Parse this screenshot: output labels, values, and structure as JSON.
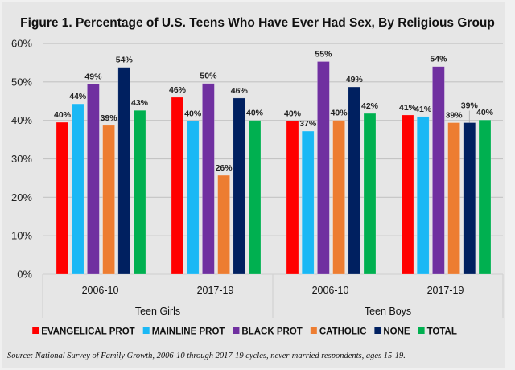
{
  "chart_data": {
    "type": "bar",
    "title": "Figure 1. Percentage of U.S. Teens Who Have Ever Had Sex, By Religious Group",
    "xlabel": "",
    "ylabel": "",
    "ylim": [
      0,
      60
    ],
    "yticks": [
      0,
      10,
      20,
      30,
      40,
      50,
      60
    ],
    "ytick_labels": [
      "0%",
      "10%",
      "20%",
      "30%",
      "40%",
      "50%",
      "60%"
    ],
    "grid": true,
    "legend_position": "bottom",
    "categories": [
      "2006-10",
      "2017-19",
      "2006-10",
      "2017-19"
    ],
    "category_groups": [
      {
        "label": "Teen Girls",
        "span": 2
      },
      {
        "label": "Teen Boys",
        "span": 2
      }
    ],
    "series": [
      {
        "name": "EVANGELICAL PROT",
        "color": "#ff0000",
        "values": [
          39.5,
          46,
          39.8,
          41.4
        ],
        "labels": [
          "40%",
          "46%",
          "40%",
          "41%"
        ]
      },
      {
        "name": "MAINLINE PROT",
        "color": "#1ab8f5",
        "values": [
          44.3,
          39.8,
          37.2,
          41
        ],
        "labels": [
          "44%",
          "40%",
          "37%",
          "41%"
        ]
      },
      {
        "name": "BLACK PROT",
        "color": "#7030a0",
        "values": [
          49.4,
          49.6,
          55.3,
          54
        ],
        "labels": [
          "49%",
          "50%",
          "55%",
          "54%"
        ]
      },
      {
        "name": "CATHOLIC",
        "color": "#ed7d31",
        "values": [
          38.7,
          25.7,
          40,
          39.4
        ],
        "labels": [
          "39%",
          "26%",
          "40%",
          "39%"
        ]
      },
      {
        "name": "NONE",
        "color": "#002060",
        "values": [
          53.8,
          45.8,
          48.7,
          39.4
        ],
        "labels": [
          "54%",
          "46%",
          "49%",
          "39%"
        ]
      },
      {
        "name": "TOTAL",
        "color": "#00b050",
        "values": [
          42.6,
          40,
          41.8,
          40.1
        ],
        "labels": [
          "43%",
          "40%",
          "42%",
          "40%"
        ]
      }
    ]
  },
  "source_note": "Source: National Survey of Family Growth, 2006-10 through 2017-19 cycles, never-married respondents, ages 15-19."
}
